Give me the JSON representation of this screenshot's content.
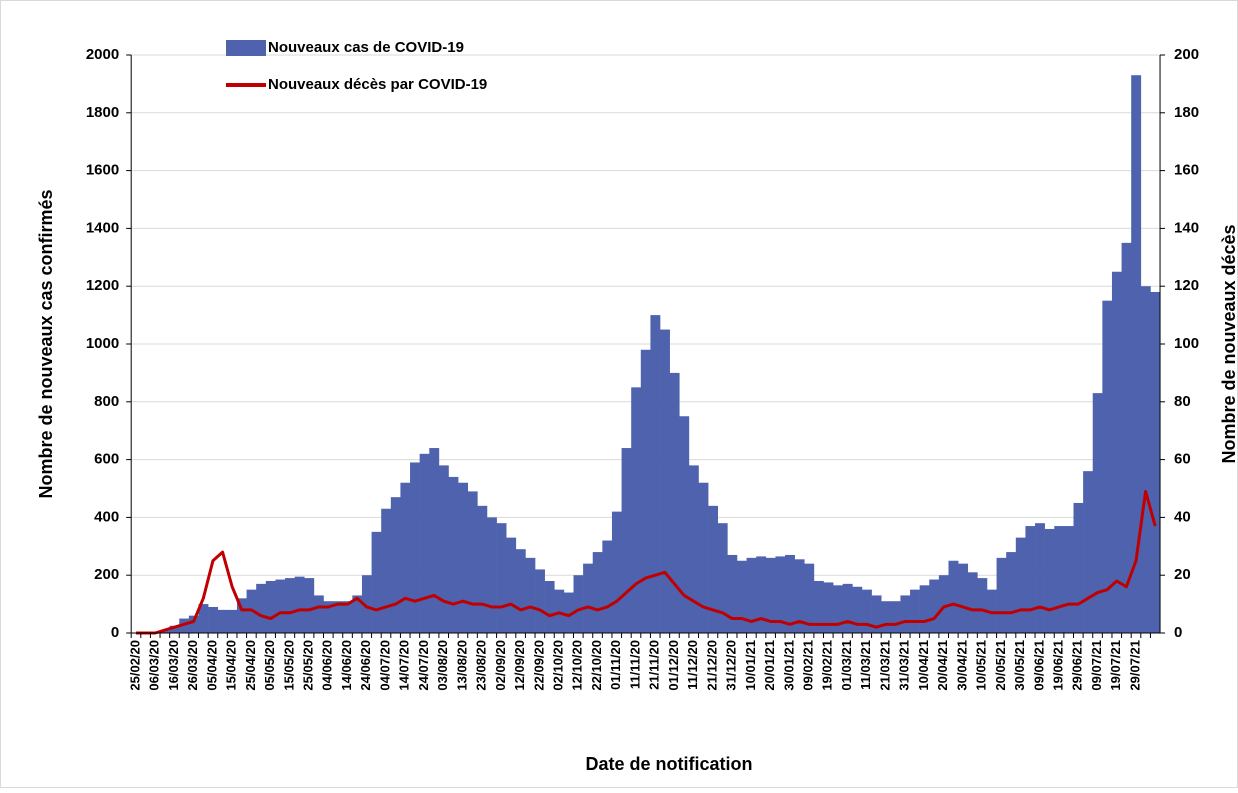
{
  "chart_data": {
    "type": "bar",
    "x_label": "Date de notification",
    "y_label": "Nombre de nouveaux cas confirmés",
    "y2_label": "Nombre de nouveaux décès",
    "categories": [
      "25/02/20",
      null,
      "06/03/20",
      null,
      "16/03/20",
      null,
      "26/03/20",
      null,
      "05/04/20",
      null,
      "15/04/20",
      null,
      "25/04/20",
      null,
      "05/05/20",
      null,
      "15/05/20",
      null,
      "25/05/20",
      null,
      "04/06/20",
      null,
      "14/06/20",
      null,
      "24/06/20",
      null,
      "04/07/20",
      null,
      "14/07/20",
      null,
      "24/07/20",
      null,
      "03/08/20",
      null,
      "13/08/20",
      null,
      "23/08/20",
      null,
      "02/09/20",
      null,
      "12/09/20",
      null,
      "22/09/20",
      null,
      "02/10/20",
      null,
      "12/10/20",
      null,
      "22/10/20",
      null,
      "01/11/20",
      null,
      "11/11/20",
      null,
      "21/11/20",
      null,
      "01/12/20",
      null,
      "11/12/20",
      null,
      "21/12/20",
      null,
      "31/12/20",
      null,
      "10/01/21",
      null,
      "20/01/21",
      null,
      "30/01/21",
      null,
      "09/02/21",
      null,
      "19/02/21",
      null,
      "01/03/21",
      null,
      "11/03/21",
      null,
      "21/03/21",
      null,
      "31/03/21",
      null,
      "10/04/21",
      null,
      "20/04/21",
      null,
      "30/04/21",
      null,
      "10/05/21",
      null,
      "20/05/21",
      null,
      "30/05/21",
      null,
      "09/06/21",
      null,
      "19/06/21",
      null,
      "29/06/21",
      null,
      "09/07/21",
      null,
      "19/07/21",
      null,
      "29/07/21",
      null,
      null
    ],
    "series": [
      {
        "name": "Nouveaux cas de COVID-19",
        "type": "bar",
        "color": "#4f62ad",
        "values": [
          0,
          0,
          2,
          10,
          25,
          50,
          60,
          100,
          90,
          80,
          80,
          120,
          150,
          170,
          180,
          185,
          190,
          195,
          190,
          130,
          110,
          110,
          110,
          130,
          200,
          350,
          430,
          470,
          520,
          590,
          620,
          640,
          580,
          540,
          520,
          490,
          440,
          400,
          380,
          330,
          290,
          260,
          220,
          180,
          150,
          140,
          200,
          240,
          280,
          320,
          420,
          640,
          850,
          980,
          1100,
          1050,
          900,
          750,
          580,
          520,
          440,
          380,
          270,
          250,
          260,
          265,
          260,
          265,
          270,
          255,
          240,
          180,
          175,
          165,
          170,
          160,
          150,
          130,
          110,
          110,
          130,
          150,
          165,
          185,
          200,
          250,
          240,
          210,
          190,
          150,
          260,
          280,
          330,
          370,
          380,
          360,
          370,
          370,
          450,
          560,
          830,
          1150,
          1250,
          1350,
          1930,
          1200,
          1180
        ]
      },
      {
        "name": "Nouveaux décès par COVID-19",
        "type": "line",
        "axis": "y2",
        "color": "#c00000",
        "values": [
          0,
          0,
          0,
          1,
          2,
          3,
          4,
          12,
          25,
          28,
          16,
          8,
          8,
          6,
          5,
          7,
          7,
          8,
          8,
          9,
          9,
          10,
          10,
          12,
          9,
          8,
          9,
          10,
          12,
          11,
          12,
          13,
          11,
          10,
          11,
          10,
          10,
          9,
          9,
          10,
          8,
          9,
          8,
          6,
          7,
          6,
          8,
          9,
          8,
          9,
          11,
          14,
          17,
          19,
          20,
          21,
          17,
          13,
          11,
          9,
          8,
          7,
          5,
          5,
          4,
          5,
          4,
          4,
          3,
          4,
          3,
          3,
          3,
          3,
          4,
          3,
          3,
          2,
          3,
          3,
          4,
          4,
          4,
          5,
          9,
          10,
          9,
          8,
          8,
          7,
          7,
          7,
          8,
          8,
          9,
          8,
          9,
          10,
          10,
          12,
          14,
          15,
          18,
          16,
          25,
          49,
          37
        ]
      }
    ],
    "ylim": [
      0,
      2000
    ],
    "yticks": [
      0,
      200,
      400,
      600,
      800,
      1000,
      1200,
      1400,
      1600,
      1800,
      2000
    ],
    "y2lim": [
      0,
      200
    ],
    "y2ticks": [
      0,
      20,
      40,
      60,
      80,
      100,
      120,
      140,
      160,
      180,
      200
    ],
    "grid": true
  }
}
